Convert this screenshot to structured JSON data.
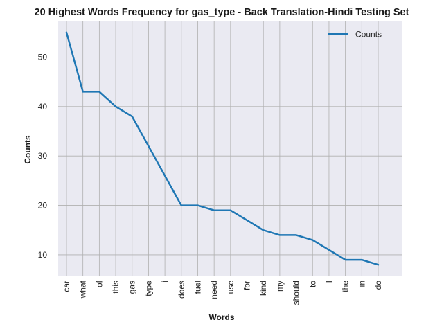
{
  "chart_data": {
    "type": "line",
    "title": "20 Highest Words Frequency for gas_type - Back Translation-Hindi Testing Set",
    "xlabel": "Words",
    "ylabel": "Counts",
    "categories": [
      "car",
      "what",
      "of",
      "this",
      "gas",
      "type",
      "i",
      "does",
      "fuel",
      "need",
      "use",
      "for",
      "kind",
      "my",
      "should",
      "to",
      "I",
      "the",
      "in",
      "do"
    ],
    "series": [
      {
        "name": "Counts",
        "values": [
          55,
          43,
          43,
          40,
          38,
          32,
          26,
          20,
          20,
          19,
          19,
          17,
          15,
          14,
          14,
          13,
          11,
          9,
          9,
          8
        ]
      }
    ],
    "y_ticks": [
      "10",
      "20",
      "30",
      "40",
      "50"
    ],
    "ylim": [
      5.65,
      57.35
    ],
    "grid": true,
    "legend_position": "top-right",
    "line_color": "#1f77b4",
    "background_color": "#eaeaf2",
    "grid_color": "#b0b0b0"
  }
}
